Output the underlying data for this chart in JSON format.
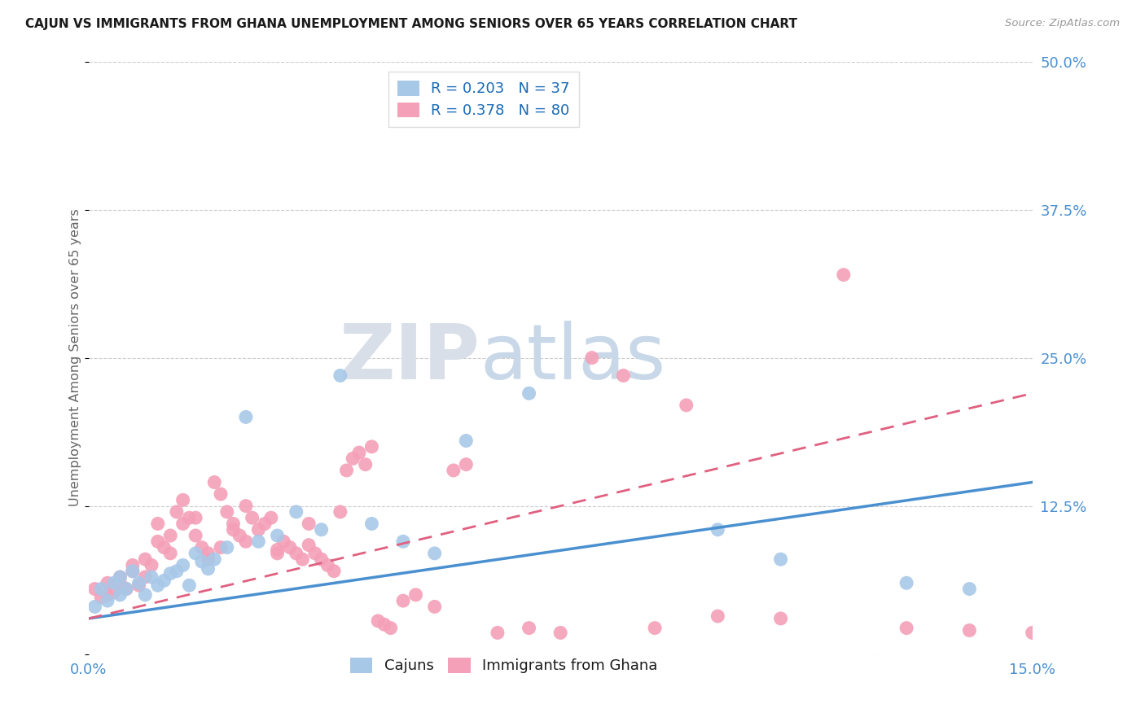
{
  "title": "CAJUN VS IMMIGRANTS FROM GHANA UNEMPLOYMENT AMONG SENIORS OVER 65 YEARS CORRELATION CHART",
  "source": "Source: ZipAtlas.com",
  "ylabel": "Unemployment Among Seniors over 65 years",
  "xlim": [
    0.0,
    0.15
  ],
  "ylim": [
    0.0,
    0.5
  ],
  "cajun_color": "#a8c8e8",
  "ghana_color": "#f4a0b8",
  "cajun_line_color": "#4a90d0",
  "ghana_line_color": "#e06080",
  "cajun_R": 0.203,
  "cajun_N": 37,
  "ghana_R": 0.378,
  "ghana_N": 80,
  "legend_label1": "Cajuns",
  "legend_label2": "Immigrants from Ghana",
  "cajun_scatter_x": [
    0.001,
    0.002,
    0.003,
    0.004,
    0.005,
    0.005,
    0.006,
    0.007,
    0.008,
    0.009,
    0.01,
    0.011,
    0.012,
    0.013,
    0.014,
    0.015,
    0.016,
    0.017,
    0.018,
    0.019,
    0.02,
    0.022,
    0.025,
    0.027,
    0.03,
    0.033,
    0.037,
    0.04,
    0.045,
    0.05,
    0.055,
    0.06,
    0.07,
    0.1,
    0.11,
    0.13,
    0.14
  ],
  "cajun_scatter_y": [
    0.04,
    0.055,
    0.045,
    0.06,
    0.05,
    0.065,
    0.055,
    0.07,
    0.06,
    0.05,
    0.065,
    0.058,
    0.062,
    0.068,
    0.07,
    0.075,
    0.058,
    0.085,
    0.078,
    0.072,
    0.08,
    0.09,
    0.2,
    0.095,
    0.1,
    0.12,
    0.105,
    0.235,
    0.11,
    0.095,
    0.085,
    0.18,
    0.22,
    0.105,
    0.08,
    0.06,
    0.055
  ],
  "ghana_scatter_x": [
    0.001,
    0.002,
    0.003,
    0.004,
    0.005,
    0.006,
    0.007,
    0.008,
    0.009,
    0.01,
    0.011,
    0.012,
    0.013,
    0.014,
    0.015,
    0.016,
    0.017,
    0.018,
    0.019,
    0.02,
    0.021,
    0.022,
    0.023,
    0.024,
    0.025,
    0.026,
    0.027,
    0.028,
    0.029,
    0.03,
    0.031,
    0.032,
    0.033,
    0.034,
    0.035,
    0.036,
    0.037,
    0.038,
    0.039,
    0.04,
    0.041,
    0.042,
    0.043,
    0.044,
    0.045,
    0.046,
    0.047,
    0.048,
    0.05,
    0.052,
    0.055,
    0.058,
    0.06,
    0.065,
    0.07,
    0.075,
    0.08,
    0.085,
    0.09,
    0.095,
    0.1,
    0.11,
    0.12,
    0.13,
    0.14,
    0.15,
    0.003,
    0.005,
    0.007,
    0.009,
    0.011,
    0.013,
    0.015,
    0.017,
    0.019,
    0.021,
    0.023,
    0.025,
    0.03,
    0.035
  ],
  "ghana_scatter_y": [
    0.055,
    0.048,
    0.06,
    0.052,
    0.065,
    0.055,
    0.07,
    0.058,
    0.065,
    0.075,
    0.11,
    0.09,
    0.085,
    0.12,
    0.13,
    0.115,
    0.1,
    0.09,
    0.08,
    0.145,
    0.135,
    0.12,
    0.11,
    0.1,
    0.125,
    0.115,
    0.105,
    0.11,
    0.115,
    0.085,
    0.095,
    0.09,
    0.085,
    0.08,
    0.11,
    0.085,
    0.08,
    0.075,
    0.07,
    0.12,
    0.155,
    0.165,
    0.17,
    0.16,
    0.175,
    0.028,
    0.025,
    0.022,
    0.045,
    0.05,
    0.04,
    0.155,
    0.16,
    0.018,
    0.022,
    0.018,
    0.25,
    0.235,
    0.022,
    0.21,
    0.032,
    0.03,
    0.32,
    0.022,
    0.02,
    0.018,
    0.05,
    0.06,
    0.075,
    0.08,
    0.095,
    0.1,
    0.11,
    0.115,
    0.085,
    0.09,
    0.105,
    0.095,
    0.088,
    0.092
  ]
}
